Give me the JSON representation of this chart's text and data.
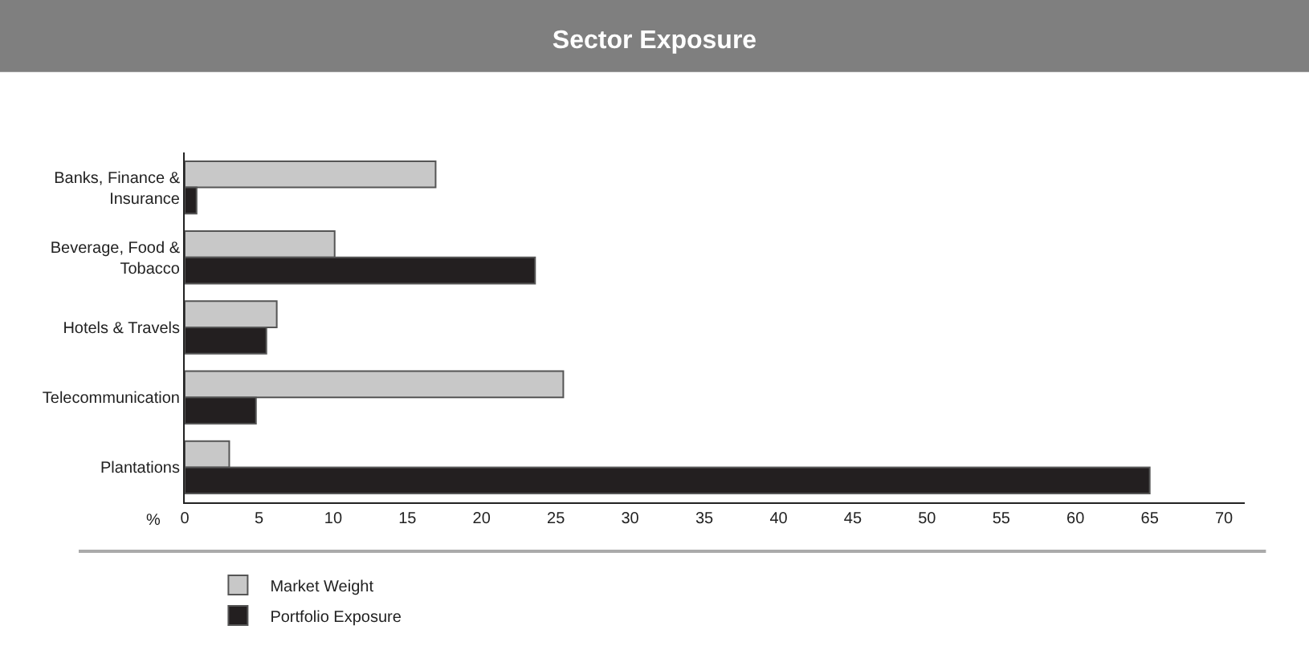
{
  "chart_data": {
    "type": "bar",
    "orientation": "horizontal",
    "title": "Sector Exposure",
    "xlabel": "%",
    "categories": [
      "Banks, Finance & Insurance",
      "Beverage, Food & Tobacco",
      "Hotels & Travels",
      "Telecommunication",
      "Plantations"
    ],
    "series": [
      {
        "name": "Market Weight",
        "color": "#c8c8c8",
        "values": [
          16.9,
          10.1,
          6.2,
          25.5,
          3.0
        ]
      },
      {
        "name": "Portfolio Exposure",
        "color": "#231f20",
        "values": [
          0.8,
          23.6,
          5.5,
          4.8,
          65
        ]
      }
    ],
    "xlim": [
      0,
      71.4
    ],
    "xticks": [
      0,
      5,
      10,
      15,
      20,
      25,
      30,
      35,
      40,
      45,
      50,
      55,
      60,
      65,
      70
    ],
    "legend": "bottom left"
  }
}
